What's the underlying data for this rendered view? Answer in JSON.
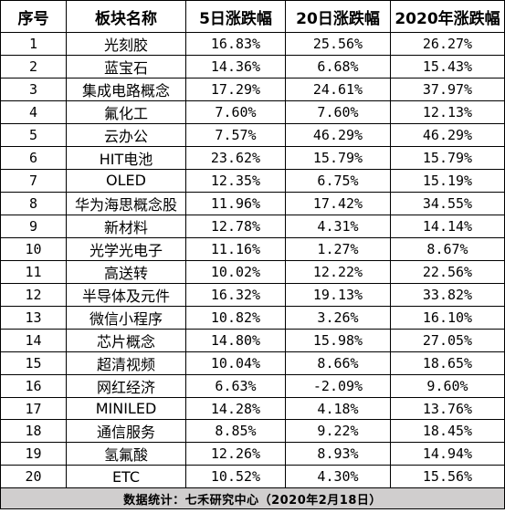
{
  "table": {
    "headers": [
      "序号",
      "板块名称",
      "5日涨跌幅",
      "20日涨跌幅",
      "2020年涨跌幅"
    ],
    "rows": [
      [
        "1",
        "光刻胶",
        "16.83%",
        "25.56%",
        "26.27%"
      ],
      [
        "2",
        "蓝宝石",
        "14.36%",
        "6.68%",
        "15.43%"
      ],
      [
        "3",
        "集成电路概念",
        "17.29%",
        "24.61%",
        "37.97%"
      ],
      [
        "4",
        "氟化工",
        "7.60%",
        "7.60%",
        "12.13%"
      ],
      [
        "5",
        "云办公",
        "7.57%",
        "46.29%",
        "46.29%"
      ],
      [
        "6",
        "HIT电池",
        "23.62%",
        "15.79%",
        "15.79%"
      ],
      [
        "7",
        "OLED",
        "12.35%",
        "6.75%",
        "15.19%"
      ],
      [
        "8",
        "华为海思概念股",
        "11.96%",
        "17.42%",
        "34.55%"
      ],
      [
        "9",
        "新材料",
        "12.78%",
        "4.31%",
        "14.14%"
      ],
      [
        "10",
        "光学光电子",
        "11.16%",
        "1.27%",
        "8.67%"
      ],
      [
        "11",
        "高送转",
        "10.02%",
        "12.22%",
        "22.56%"
      ],
      [
        "12",
        "半导体及元件",
        "16.32%",
        "19.13%",
        "33.82%"
      ],
      [
        "13",
        "微信小程序",
        "10.82%",
        "3.26%",
        "16.10%"
      ],
      [
        "14",
        "芯片概念",
        "14.80%",
        "15.98%",
        "27.05%"
      ],
      [
        "15",
        "超清视频",
        "10.04%",
        "8.66%",
        "18.65%"
      ],
      [
        "16",
        "网红经济",
        "6.63%",
        "-2.09%",
        "9.60%"
      ],
      [
        "17",
        "MINILED",
        "14.28%",
        "4.18%",
        "13.76%"
      ],
      [
        "18",
        "通信服务",
        "8.85%",
        "9.22%",
        "18.45%"
      ],
      [
        "19",
        "氢氟酸",
        "12.26%",
        "8.93%",
        "14.94%"
      ],
      [
        "20",
        "ETC",
        "10.52%",
        "4.30%",
        "15.56%"
      ]
    ],
    "footer": "数据统计：七禾研究中心（2020年2月18日）"
  }
}
